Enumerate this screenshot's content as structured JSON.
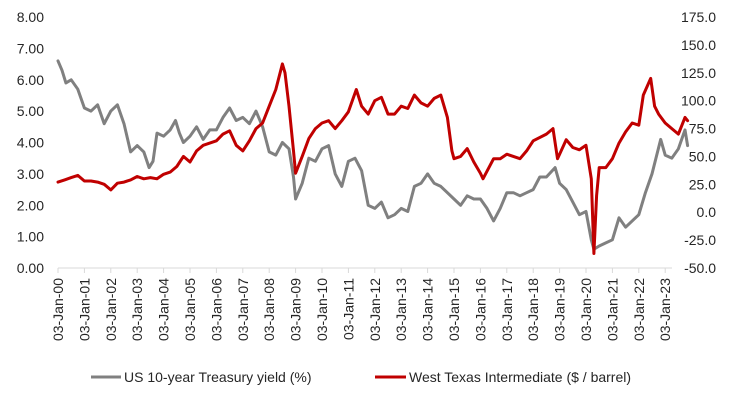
{
  "chart_data": {
    "type": "line",
    "title": "",
    "xlabel": "",
    "ylabel": "",
    "y2label": "",
    "grid": false,
    "legend_position": "bottom",
    "x_tick_labels": [
      "03-Jan-00",
      "03-Jan-01",
      "03-Jan-02",
      "03-Jan-03",
      "03-Jan-04",
      "03-Jan-05",
      "03-Jan-06",
      "03-Jan-07",
      "03-Jan-08",
      "03-Jan-09",
      "03-Jan-10",
      "03-Jan-11",
      "03-Jan-12",
      "03-Jan-13",
      "03-Jan-14",
      "03-Jan-15",
      "03-Jan-16",
      "03-Jan-17",
      "03-Jan-18",
      "03-Jan-19",
      "03-Jan-20",
      "03-Jan-21",
      "03-Jan-22",
      "03-Jan-23"
    ],
    "y_left": {
      "lim": [
        0,
        8
      ],
      "ticks": [
        "0.00",
        "1.00",
        "2.00",
        "3.00",
        "4.00",
        "5.00",
        "6.00",
        "7.00",
        "8.00"
      ]
    },
    "y_right": {
      "lim": [
        -50,
        175
      ],
      "ticks": [
        "-50.0",
        "-25.0",
        "0.0",
        "25.0",
        "50.0",
        "75.0",
        "100.0",
        "125.0",
        "150.0",
        "175.0"
      ]
    },
    "series": [
      {
        "name": "US 10-year Treasury yield (%)",
        "color": "#808080",
        "axis": "left",
        "x": [
          2000.0,
          2000.15,
          2000.3,
          2000.5,
          2000.75,
          2001.0,
          2001.25,
          2001.5,
          2001.75,
          2002.0,
          2002.25,
          2002.5,
          2002.75,
          2003.0,
          2003.25,
          2003.45,
          2003.6,
          2003.75,
          2004.0,
          2004.25,
          2004.45,
          2004.6,
          2004.75,
          2005.0,
          2005.25,
          2005.5,
          2005.75,
          2006.0,
          2006.25,
          2006.5,
          2006.75,
          2007.0,
          2007.25,
          2007.5,
          2007.75,
          2008.0,
          2008.25,
          2008.5,
          2008.75,
          2008.92,
          2009.0,
          2009.25,
          2009.5,
          2009.75,
          2010.0,
          2010.25,
          2010.5,
          2010.75,
          2011.0,
          2011.25,
          2011.5,
          2011.75,
          2012.0,
          2012.25,
          2012.5,
          2012.75,
          2013.0,
          2013.25,
          2013.5,
          2013.75,
          2014.0,
          2014.25,
          2014.5,
          2014.75,
          2015.0,
          2015.25,
          2015.5,
          2015.75,
          2016.0,
          2016.25,
          2016.5,
          2016.75,
          2017.0,
          2017.25,
          2017.5,
          2017.75,
          2018.0,
          2018.25,
          2018.5,
          2018.83,
          2019.0,
          2019.25,
          2019.5,
          2019.75,
          2020.0,
          2020.2,
          2020.3,
          2020.5,
          2020.75,
          2021.0,
          2021.25,
          2021.5,
          2021.75,
          2022.0,
          2022.25,
          2022.5,
          2022.83,
          2023.0,
          2023.25,
          2023.5,
          2023.75,
          2023.85
        ],
        "values": [
          6.6,
          6.3,
          5.9,
          6.0,
          5.7,
          5.1,
          5.0,
          5.2,
          4.6,
          5.0,
          5.2,
          4.6,
          3.7,
          3.9,
          3.7,
          3.2,
          3.4,
          4.3,
          4.2,
          4.4,
          4.7,
          4.3,
          4.0,
          4.2,
          4.5,
          4.1,
          4.4,
          4.4,
          4.8,
          5.1,
          4.7,
          4.8,
          4.6,
          5.0,
          4.5,
          3.7,
          3.6,
          4.0,
          3.8,
          2.9,
          2.2,
          2.7,
          3.5,
          3.4,
          3.8,
          3.9,
          3.0,
          2.6,
          3.4,
          3.5,
          3.1,
          2.0,
          1.9,
          2.1,
          1.6,
          1.7,
          1.9,
          1.8,
          2.6,
          2.7,
          3.0,
          2.7,
          2.6,
          2.4,
          2.2,
          2.0,
          2.3,
          2.2,
          2.2,
          1.9,
          1.5,
          1.9,
          2.4,
          2.4,
          2.3,
          2.4,
          2.5,
          2.9,
          2.9,
          3.2,
          2.7,
          2.5,
          2.1,
          1.7,
          1.8,
          0.9,
          0.6,
          0.7,
          0.8,
          0.9,
          1.6,
          1.3,
          1.5,
          1.7,
          2.4,
          3.0,
          4.1,
          3.6,
          3.5,
          3.8,
          4.4,
          3.9
        ]
      },
      {
        "name": "West Texas Intermediate ($ / barrel)",
        "color": "#c00000",
        "axis": "right",
        "x": [
          2000.0,
          2000.25,
          2000.5,
          2000.75,
          2001.0,
          2001.25,
          2001.5,
          2001.75,
          2002.0,
          2002.25,
          2002.5,
          2002.75,
          2003.0,
          2003.25,
          2003.5,
          2003.75,
          2004.0,
          2004.25,
          2004.5,
          2004.75,
          2005.0,
          2005.25,
          2005.5,
          2005.75,
          2006.0,
          2006.25,
          2006.5,
          2006.75,
          2007.0,
          2007.25,
          2007.5,
          2007.75,
          2008.0,
          2008.25,
          2008.5,
          2008.6,
          2008.75,
          2008.92,
          2009.0,
          2009.25,
          2009.5,
          2009.75,
          2010.0,
          2010.25,
          2010.5,
          2010.75,
          2011.0,
          2011.3,
          2011.5,
          2011.75,
          2012.0,
          2012.25,
          2012.5,
          2012.75,
          2013.0,
          2013.25,
          2013.5,
          2013.75,
          2014.0,
          2014.25,
          2014.5,
          2014.75,
          2014.92,
          2015.0,
          2015.25,
          2015.5,
          2015.75,
          2016.0,
          2016.1,
          2016.5,
          2016.75,
          2017.0,
          2017.5,
          2017.75,
          2018.0,
          2018.5,
          2018.75,
          2018.92,
          2019.0,
          2019.25,
          2019.5,
          2019.75,
          2020.0,
          2020.2,
          2020.3,
          2020.4,
          2020.5,
          2020.75,
          2021.0,
          2021.25,
          2021.5,
          2021.75,
          2022.0,
          2022.17,
          2022.45,
          2022.6,
          2022.75,
          2023.0,
          2023.25,
          2023.5,
          2023.75,
          2023.85
        ],
        "values": [
          27,
          29,
          31,
          33,
          28,
          28,
          27,
          25,
          20,
          26,
          27,
          29,
          32,
          30,
          31,
          30,
          34,
          36,
          41,
          50,
          45,
          55,
          60,
          62,
          64,
          70,
          73,
          60,
          55,
          64,
          75,
          80,
          95,
          110,
          133,
          125,
          95,
          55,
          35,
          50,
          66,
          75,
          80,
          82,
          75,
          82,
          90,
          110,
          95,
          88,
          100,
          103,
          88,
          88,
          95,
          93,
          105,
          98,
          95,
          102,
          105,
          85,
          55,
          48,
          50,
          57,
          45,
          35,
          30,
          48,
          48,
          52,
          48,
          55,
          64,
          70,
          75,
          48,
          52,
          65,
          58,
          56,
          60,
          30,
          -37,
          15,
          40,
          40,
          48,
          62,
          72,
          80,
          78,
          105,
          120,
          95,
          88,
          80,
          75,
          70,
          85,
          82
        ]
      }
    ]
  }
}
